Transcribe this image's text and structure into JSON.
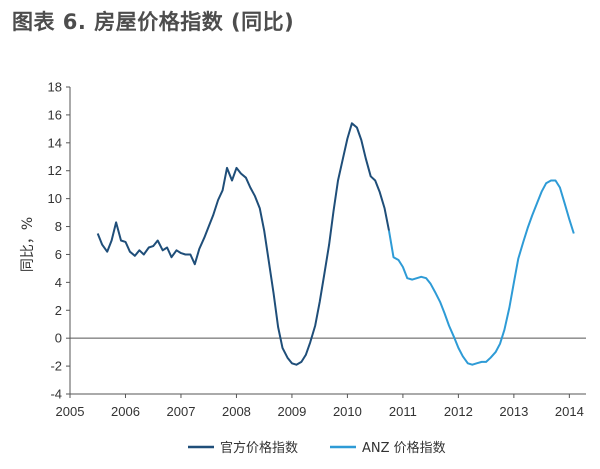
{
  "title": "图表 6. 房屋价格指数 (同比)",
  "chart_data": {
    "type": "line",
    "ylabel": "同比，%",
    "xlabel": "",
    "xlim": [
      2005,
      2014.3
    ],
    "ylim": [
      -4,
      18
    ],
    "yticks": [
      -4,
      -2,
      0,
      2,
      4,
      6,
      8,
      10,
      12,
      14,
      16,
      18
    ],
    "xticks": [
      2005,
      2006,
      2007,
      2008,
      2009,
      2010,
      2011,
      2012,
      2013,
      2014
    ],
    "legend_position": "bottom",
    "series": [
      {
        "name": "官方价格指数",
        "color": "#1f4e79",
        "points": [
          [
            2005.5,
            7.5
          ],
          [
            2005.58,
            6.7
          ],
          [
            2005.67,
            6.2
          ],
          [
            2005.75,
            7.0
          ],
          [
            2005.83,
            8.3
          ],
          [
            2005.92,
            7.0
          ],
          [
            2006.0,
            6.9
          ],
          [
            2006.08,
            6.2
          ],
          [
            2006.17,
            5.9
          ],
          [
            2006.25,
            6.3
          ],
          [
            2006.33,
            6.0
          ],
          [
            2006.42,
            6.5
          ],
          [
            2006.5,
            6.6
          ],
          [
            2006.58,
            7.0
          ],
          [
            2006.67,
            6.3
          ],
          [
            2006.75,
            6.5
          ],
          [
            2006.83,
            5.8
          ],
          [
            2006.92,
            6.3
          ],
          [
            2007.0,
            6.1
          ],
          [
            2007.08,
            6.0
          ],
          [
            2007.17,
            6.0
          ],
          [
            2007.25,
            5.3
          ],
          [
            2007.33,
            6.4
          ],
          [
            2007.42,
            7.2
          ],
          [
            2007.5,
            8.0
          ],
          [
            2007.58,
            8.8
          ],
          [
            2007.67,
            9.9
          ],
          [
            2007.75,
            10.6
          ],
          [
            2007.83,
            12.2
          ],
          [
            2007.92,
            11.3
          ],
          [
            2008.0,
            12.2
          ],
          [
            2008.08,
            11.8
          ],
          [
            2008.17,
            11.5
          ],
          [
            2008.25,
            10.8
          ],
          [
            2008.33,
            10.2
          ],
          [
            2008.42,
            9.3
          ],
          [
            2008.5,
            7.7
          ],
          [
            2008.58,
            5.6
          ],
          [
            2008.67,
            3.2
          ],
          [
            2008.75,
            0.8
          ],
          [
            2008.83,
            -0.7
          ],
          [
            2008.92,
            -1.4
          ],
          [
            2009.0,
            -1.8
          ],
          [
            2009.08,
            -1.9
          ],
          [
            2009.17,
            -1.7
          ],
          [
            2009.25,
            -1.2
          ],
          [
            2009.33,
            -0.3
          ],
          [
            2009.42,
            0.9
          ],
          [
            2009.5,
            2.6
          ],
          [
            2009.58,
            4.5
          ],
          [
            2009.67,
            6.7
          ],
          [
            2009.75,
            9.1
          ],
          [
            2009.83,
            11.3
          ],
          [
            2009.92,
            12.9
          ],
          [
            2010.0,
            14.3
          ],
          [
            2010.08,
            15.4
          ],
          [
            2010.17,
            15.1
          ],
          [
            2010.25,
            14.2
          ],
          [
            2010.33,
            12.9
          ],
          [
            2010.42,
            11.6
          ],
          [
            2010.5,
            11.3
          ],
          [
            2010.58,
            10.5
          ],
          [
            2010.67,
            9.3
          ],
          [
            2010.75,
            7.7
          ]
        ]
      },
      {
        "name": "ANZ 价格指数",
        "color": "#2e9bd6",
        "points": [
          [
            2010.75,
            7.7
          ],
          [
            2010.83,
            5.8
          ],
          [
            2010.92,
            5.6
          ],
          [
            2011.0,
            5.1
          ],
          [
            2011.08,
            4.3
          ],
          [
            2011.17,
            4.2
          ],
          [
            2011.25,
            4.3
          ],
          [
            2011.33,
            4.4
          ],
          [
            2011.42,
            4.3
          ],
          [
            2011.5,
            3.9
          ],
          [
            2011.58,
            3.3
          ],
          [
            2011.67,
            2.6
          ],
          [
            2011.75,
            1.8
          ],
          [
            2011.83,
            0.9
          ],
          [
            2011.92,
            0.1
          ],
          [
            2012.0,
            -0.7
          ],
          [
            2012.08,
            -1.3
          ],
          [
            2012.17,
            -1.8
          ],
          [
            2012.25,
            -1.9
          ],
          [
            2012.33,
            -1.8
          ],
          [
            2012.42,
            -1.7
          ],
          [
            2012.5,
            -1.7
          ],
          [
            2012.58,
            -1.4
          ],
          [
            2012.67,
            -1.0
          ],
          [
            2012.75,
            -0.4
          ],
          [
            2012.83,
            0.6
          ],
          [
            2012.92,
            2.2
          ],
          [
            2013.0,
            4.0
          ],
          [
            2013.08,
            5.7
          ],
          [
            2013.17,
            6.9
          ],
          [
            2013.25,
            7.9
          ],
          [
            2013.33,
            8.8
          ],
          [
            2013.42,
            9.7
          ],
          [
            2013.5,
            10.5
          ],
          [
            2013.58,
            11.1
          ],
          [
            2013.67,
            11.3
          ],
          [
            2013.75,
            11.3
          ],
          [
            2013.83,
            10.8
          ],
          [
            2013.92,
            9.6
          ],
          [
            2014.0,
            8.5
          ],
          [
            2014.08,
            7.5
          ]
        ]
      }
    ]
  }
}
